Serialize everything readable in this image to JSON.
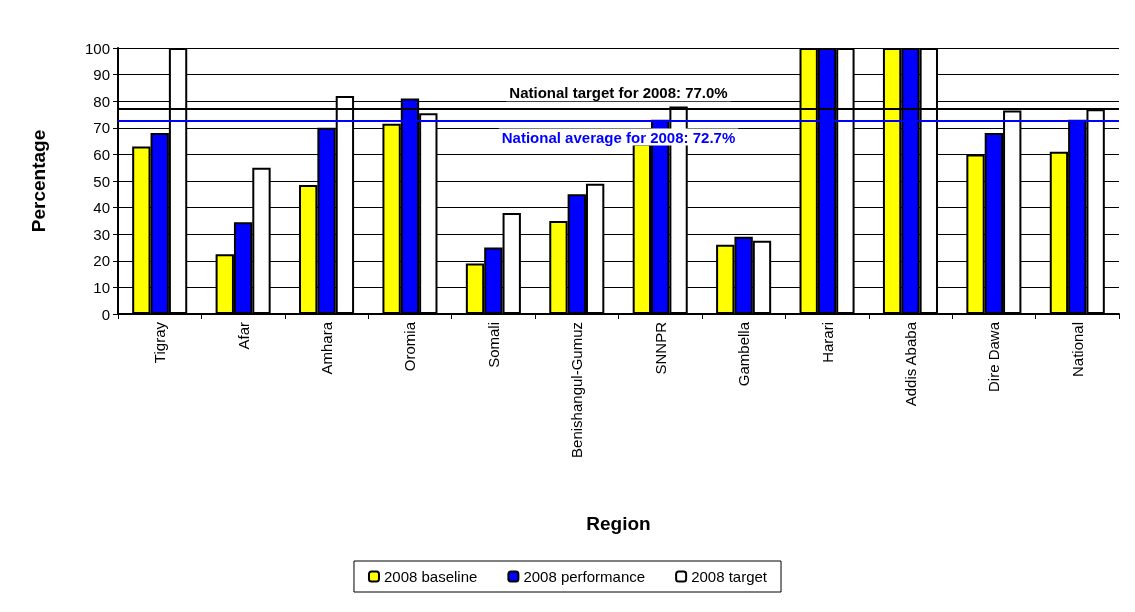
{
  "chart_data": {
    "type": "bar",
    "xlabel": "Region",
    "ylabel": "Percentage",
    "categories": [
      "Tigray",
      "Afar",
      "Amhara",
      "Oromia",
      "Somali",
      "Benishangul-Gumuz",
      "SNNPR",
      "Gambella",
      "Harari",
      "Addis Ababa",
      "Dire Dawa",
      "National"
    ],
    "series": [
      {
        "name": "2008 baseline",
        "color": "#ffff00",
        "values": [
          63,
          22.5,
          48.5,
          71.5,
          19,
          35,
          64,
          26,
          100,
          100,
          60,
          61
        ]
      },
      {
        "name": "2008 performance",
        "color": "#0000ff",
        "values": [
          68,
          34.5,
          70,
          81,
          25,
          45,
          73,
          29,
          100,
          100,
          68,
          73
        ]
      },
      {
        "name": "2008 target",
        "color": "#ffffff",
        "values": [
          100,
          55,
          82,
          75.5,
          38,
          49,
          78,
          27.5,
          100,
          100,
          76.5,
          77
        ]
      }
    ],
    "ylim": [
      0,
      100
    ],
    "yticks": [
      0,
      10,
      20,
      30,
      40,
      50,
      60,
      70,
      80,
      90,
      100
    ],
    "grid": "y",
    "legend": "bottom",
    "ref_lines": [
      {
        "axis": "y",
        "value": 77.0,
        "label": "National target for 2008: 77.0%",
        "color": "#000000"
      },
      {
        "axis": "y",
        "value": 72.7,
        "label": "National average for 2008: 72.7%",
        "color": "#0000ff"
      }
    ]
  }
}
